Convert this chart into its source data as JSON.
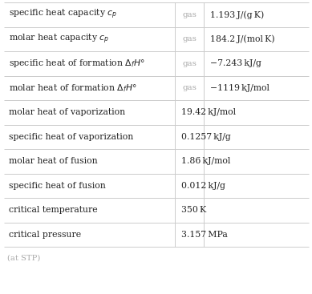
{
  "rows": [
    {
      "label": "specific heat capacity $c_p$",
      "has_condition": true,
      "condition": "gas",
      "value": "1.193 J/(g K)"
    },
    {
      "label": "molar heat capacity $c_p$",
      "has_condition": true,
      "condition": "gas",
      "value": "184.2 J/(mol K)"
    },
    {
      "label": "specific heat of formation $\\Delta_f H°$",
      "has_condition": true,
      "condition": "gas",
      "value": "−7.243 kJ/g"
    },
    {
      "label": "molar heat of formation $\\Delta_f H°$",
      "has_condition": true,
      "condition": "gas",
      "value": "−1119 kJ/mol"
    },
    {
      "label": "molar heat of vaporization",
      "has_condition": false,
      "condition": "",
      "value": "19.42 kJ/mol"
    },
    {
      "label": "specific heat of vaporization",
      "has_condition": false,
      "condition": "",
      "value": "0.1257 kJ/g"
    },
    {
      "label": "molar heat of fusion",
      "has_condition": false,
      "condition": "",
      "value": "1.86 kJ/mol"
    },
    {
      "label": "specific heat of fusion",
      "has_condition": false,
      "condition": "",
      "value": "0.012 kJ/g"
    },
    {
      "label": "critical temperature",
      "has_condition": false,
      "condition": "",
      "value": "350 K"
    },
    {
      "label": "critical pressure",
      "has_condition": false,
      "condition": "",
      "value": "3.157 MPa"
    }
  ],
  "footer": "(at STP)",
  "bg_color": "#ffffff",
  "label_color": "#222222",
  "condition_color": "#aaaaaa",
  "value_color": "#222222",
  "grid_color": "#cccccc",
  "label_fontsize": 7.8,
  "value_fontsize": 7.8,
  "condition_fontsize": 7.4,
  "footer_fontsize": 7.2
}
